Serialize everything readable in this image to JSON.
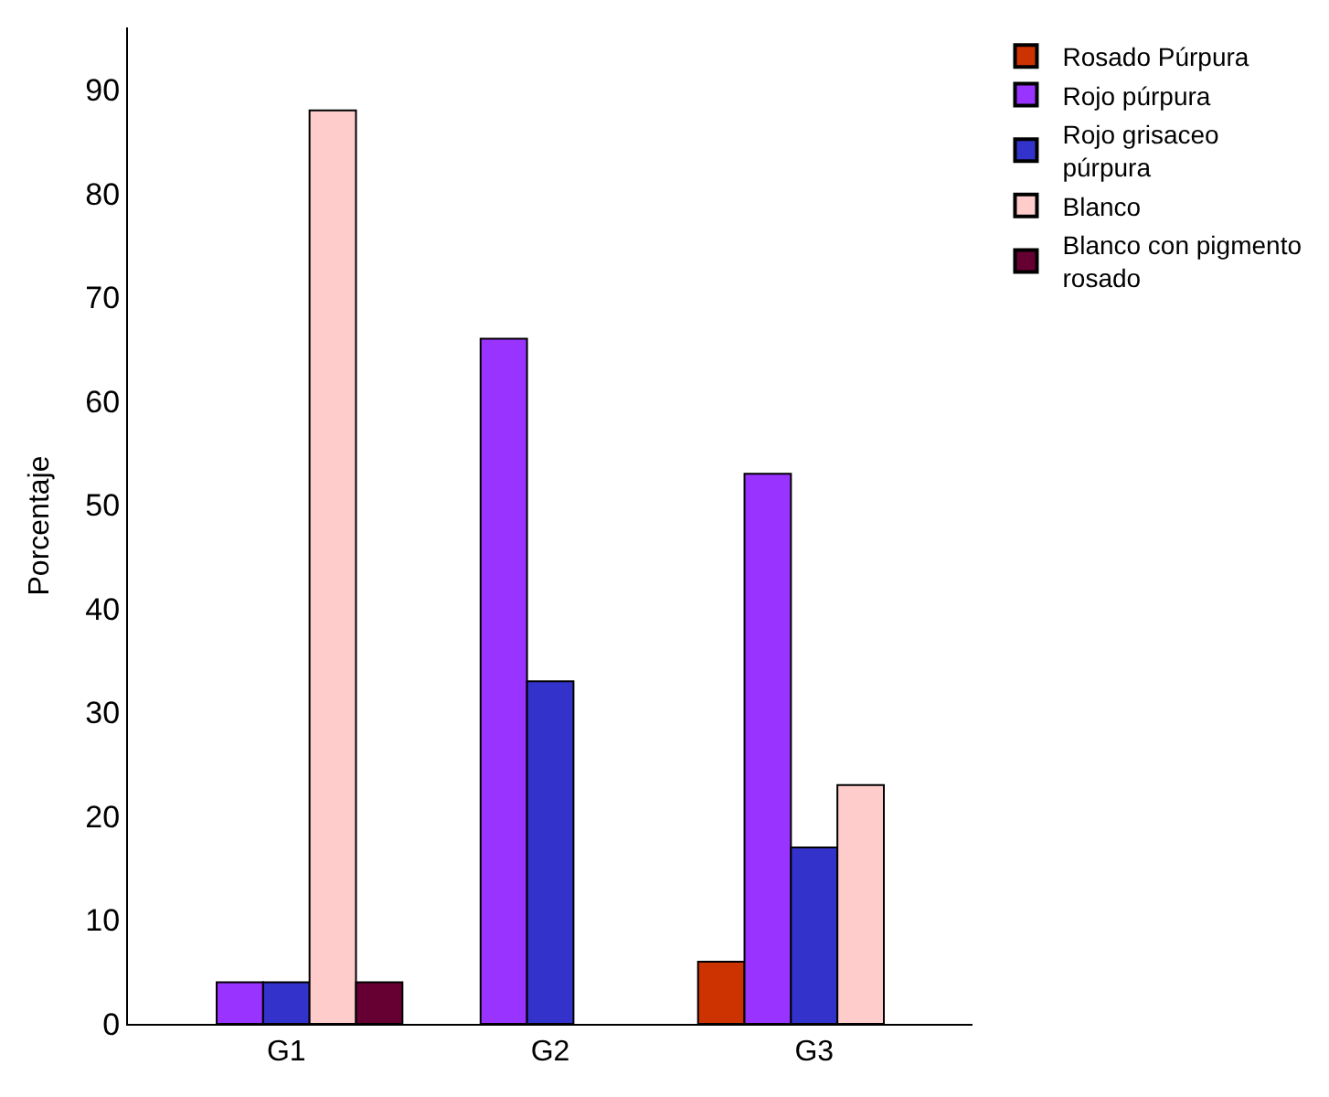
{
  "chart_data": {
    "type": "bar",
    "ylabel": "Porcentaje",
    "categories": [
      "G1",
      "G2",
      "G3"
    ],
    "series": [
      {
        "name": "Rosado Púrpura",
        "color": "#cc3300",
        "values": [
          0,
          0,
          6
        ]
      },
      {
        "name": "Rojo púrpura",
        "color": "#9933ff",
        "values": [
          4,
          66,
          53
        ]
      },
      {
        "name": "Rojo grisaceo púrpura",
        "color": "#3333cc",
        "values": [
          4,
          33,
          17
        ]
      },
      {
        "name": "Blanco",
        "color": "#ffcccc",
        "values": [
          88,
          0,
          23
        ]
      },
      {
        "name": "Blanco con pigmento rosado",
        "color": "#660033",
        "values": [
          4,
          0,
          0
        ]
      }
    ],
    "ylim": [
      0,
      96
    ],
    "yticks": [
      0,
      10,
      20,
      30,
      40,
      50,
      60,
      70,
      80,
      90
    ],
    "legend": "right"
  }
}
